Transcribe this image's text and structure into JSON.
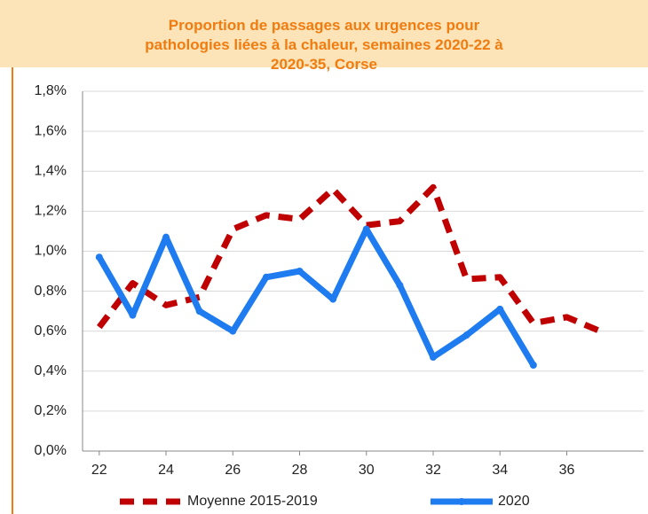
{
  "chart_data": {
    "type": "line",
    "title": "Proportion de passages aux urgences pour pathologies liées à la chaleur, semaines 2020-22 à 2020-35, Corse",
    "x": [
      22,
      23,
      24,
      25,
      26,
      27,
      28,
      29,
      30,
      31,
      32,
      33,
      34,
      35,
      36,
      37
    ],
    "series": [
      {
        "name": "Moyenne 2015-2019",
        "color": "#c00000",
        "dashed": true,
        "values": [
          0.62,
          0.84,
          0.73,
          0.77,
          1.11,
          1.18,
          1.16,
          1.31,
          1.13,
          1.15,
          1.32,
          0.86,
          0.87,
          0.64,
          0.67,
          0.6
        ]
      },
      {
        "name": "2020",
        "color": "#1e7bf0",
        "markers": true,
        "values": [
          0.97,
          0.68,
          1.07,
          0.7,
          0.6,
          0.87,
          0.9,
          0.76,
          1.11,
          0.83,
          0.47,
          0.58,
          0.71,
          0.43,
          null,
          null
        ]
      }
    ],
    "xlim": [
      21.5,
      38.3
    ],
    "xticks": [
      22,
      24,
      26,
      28,
      30,
      32,
      34,
      36
    ],
    "ylim": [
      0,
      1.8
    ],
    "yticks": [
      {
        "value": 0,
        "label": "0,0%"
      },
      {
        "value": 0.2,
        "label": "0,2%"
      },
      {
        "value": 0.4,
        "label": "0,4%"
      },
      {
        "value": 0.6,
        "label": "0,6%"
      },
      {
        "value": 0.8,
        "label": "0,8%"
      },
      {
        "value": 1.0,
        "label": "1,0%"
      },
      {
        "value": 1.2,
        "label": "1,2%"
      },
      {
        "value": 1.4,
        "label": "1,4%"
      },
      {
        "value": 1.6,
        "label": "1,6%"
      },
      {
        "value": 1.8,
        "label": "1,8%"
      }
    ],
    "grid": true
  }
}
